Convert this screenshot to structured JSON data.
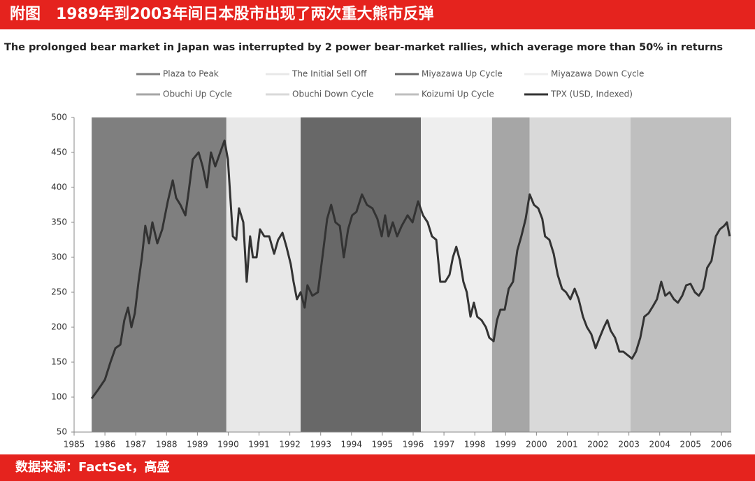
{
  "header": "附图　1989年到2003年间日本股市出现了两次重大熊市反弹",
  "source": "数据来源：FactSet，高盛",
  "chart_data": {
    "type": "line",
    "title": "The prolonged bear market in Japan was interrupted by 2 power bear-market rallies, which average more than 50% in returns",
    "periods": [
      {
        "name": "Plaza to Peak",
        "color": "#7f7f7f",
        "start": 1985.57,
        "end": 1989.94
      },
      {
        "name": "The Initial Sell Off",
        "color": "#e8e8e8",
        "start": 1989.94,
        "end": 1992.35
      },
      {
        "name": "Miyazawa Up Cycle",
        "color": "#686868",
        "start": 1992.35,
        "end": 1996.25
      },
      {
        "name": "Miyazawa Down Cycle",
        "color": "#eeeeee",
        "start": 1996.25,
        "end": 1998.56
      },
      {
        "name": "Obuchi Up Cycle",
        "color": "#a6a6a6",
        "start": 1998.56,
        "end": 1999.78
      },
      {
        "name": "Obuchi Down Cycle",
        "color": "#d9d9d9",
        "start": 1999.78,
        "end": 2003.05
      },
      {
        "name": "Koizumi Up Cycle",
        "color": "#bfbfbf",
        "start": 2003.05,
        "end": 2006.32
      }
    ],
    "x": [
      1985.57,
      1985.77,
      1986.0,
      1986.18,
      1986.34,
      1986.5,
      1986.63,
      1986.75,
      1986.86,
      1986.97,
      1987.09,
      1987.2,
      1987.31,
      1987.43,
      1987.54,
      1987.7,
      1987.86,
      1988.04,
      1988.2,
      1988.31,
      1988.45,
      1988.61,
      1988.72,
      1988.85,
      1989.04,
      1989.17,
      1989.31,
      1989.44,
      1989.58,
      1989.74,
      1989.88,
      1989.99,
      1990.15,
      1990.26,
      1990.35,
      1990.49,
      1990.6,
      1990.71,
      1990.8,
      1990.92,
      1991.03,
      1991.17,
      1991.33,
      1991.49,
      1991.62,
      1991.76,
      1991.89,
      1992.03,
      1992.12,
      1992.23,
      1992.35,
      1992.48,
      1992.57,
      1992.73,
      1992.91,
      1993.07,
      1993.21,
      1993.34,
      1993.48,
      1993.62,
      1993.75,
      1993.89,
      1994.02,
      1994.16,
      1994.34,
      1994.5,
      1994.68,
      1994.84,
      1994.98,
      1995.09,
      1995.2,
      1995.34,
      1995.48,
      1995.63,
      1995.82,
      1995.98,
      1996.16,
      1996.32,
      1996.47,
      1996.61,
      1996.75,
      1996.88,
      1997.04,
      1997.18,
      1997.29,
      1997.4,
      1997.52,
      1997.63,
      1997.74,
      1997.86,
      1997.97,
      1998.08,
      1998.22,
      1998.36,
      1998.47,
      1998.61,
      1998.72,
      1998.83,
      1998.97,
      1999.1,
      1999.24,
      1999.38,
      1999.51,
      1999.65,
      1999.78,
      1999.92,
      2000.06,
      2000.19,
      2000.28,
      2000.42,
      2000.56,
      2000.69,
      2000.83,
      2000.96,
      2001.1,
      2001.24,
      2001.37,
      2001.51,
      2001.64,
      2001.78,
      2001.92,
      2002.05,
      2002.19,
      2002.3,
      2002.41,
      2002.55,
      2002.69,
      2002.82,
      2002.96,
      2003.1,
      2003.23,
      2003.37,
      2003.5,
      2003.64,
      2003.78,
      2003.91,
      2004.05,
      2004.18,
      2004.32,
      2004.46,
      2004.59,
      2004.73,
      2004.86,
      2005.0,
      2005.14,
      2005.27,
      2005.41,
      2005.54,
      2005.68,
      2005.82,
      2005.95,
      2006.09,
      2006.18,
      2006.27
    ],
    "series": [
      {
        "name": "TPX (USD, Indexed)",
        "color": "#333333",
        "values": [
          98,
          110,
          125,
          150,
          170,
          175,
          210,
          228,
          200,
          220,
          265,
          300,
          345,
          320,
          350,
          320,
          340,
          380,
          410,
          385,
          375,
          360,
          395,
          440,
          450,
          430,
          400,
          450,
          430,
          450,
          467,
          440,
          330,
          325,
          370,
          350,
          265,
          330,
          300,
          300,
          340,
          330,
          330,
          305,
          325,
          335,
          315,
          290,
          265,
          240,
          250,
          228,
          260,
          245,
          250,
          305,
          355,
          375,
          350,
          345,
          300,
          340,
          360,
          365,
          390,
          375,
          370,
          355,
          330,
          360,
          330,
          350,
          330,
          345,
          360,
          350,
          380,
          360,
          350,
          330,
          325,
          265,
          265,
          275,
          300,
          315,
          295,
          265,
          250,
          215,
          235,
          215,
          210,
          200,
          185,
          180,
          210,
          225,
          225,
          255,
          265,
          310,
          330,
          355,
          390,
          375,
          370,
          355,
          330,
          325,
          305,
          275,
          255,
          250,
          240,
          255,
          240,
          215,
          200,
          190,
          170,
          185,
          200,
          210,
          195,
          185,
          165,
          165,
          160,
          155,
          165,
          185,
          215,
          220,
          230,
          240,
          265,
          245,
          250,
          240,
          235,
          245,
          260,
          262,
          250,
          245,
          255,
          285,
          295,
          330,
          340,
          345,
          350,
          330
        ]
      }
    ],
    "xlim": [
      1985,
      2006.32
    ],
    "xticks": [
      1985,
      1986,
      1987,
      1988,
      1989,
      1990,
      1991,
      1992,
      1993,
      1994,
      1995,
      1996,
      1997,
      1998,
      1999,
      2000,
      2001,
      2002,
      2003,
      2004,
      2005,
      2006
    ],
    "ylim": [
      50,
      500
    ],
    "yticks": [
      50,
      100,
      150,
      200,
      250,
      300,
      350,
      400,
      450,
      500
    ]
  }
}
